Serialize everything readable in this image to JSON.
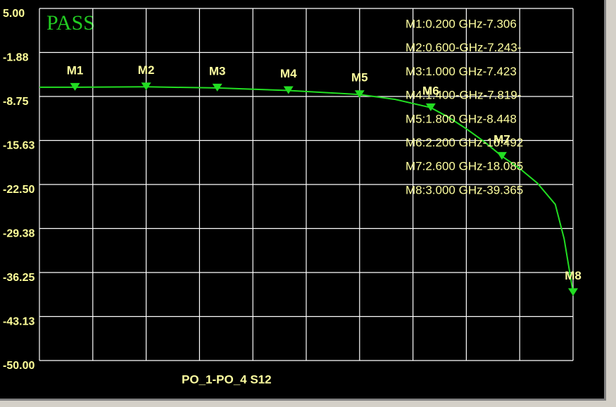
{
  "chart_data": {
    "type": "line",
    "badge": "PASS",
    "xlabel": "PO_1-PO_4  S12",
    "xlim": [
      0,
      3
    ],
    "xticks": [
      0,
      0.3,
      0.6,
      0.9,
      1.2,
      1.5,
      1.8,
      2.1,
      2.4,
      2.7,
      3
    ],
    "ylim": [
      -50,
      5
    ],
    "yticks": [
      {
        "value": 5,
        "label": "5.00"
      },
      {
        "value": -1.875,
        "label": "-1.88"
      },
      {
        "value": -8.75,
        "label": "-8.75"
      },
      {
        "value": -15.625,
        "label": "-15.63"
      },
      {
        "value": -22.5,
        "label": "-22.50"
      },
      {
        "value": -29.375,
        "label": "-29.38"
      },
      {
        "value": -36.25,
        "label": "-36.25"
      },
      {
        "value": -43.125,
        "label": "-43.13"
      },
      {
        "value": -50,
        "label": "-50.00"
      }
    ],
    "grid": true,
    "x": [
      0,
      0.2,
      0.6,
      1.0,
      1.4,
      1.8,
      2.0,
      2.2,
      2.3,
      2.4,
      2.5,
      2.6,
      2.7,
      2.8,
      2.9,
      2.95,
      3.0
    ],
    "series": [
      {
        "color": "#22dd22",
        "values": [
          -7.3,
          -7.306,
          -7.243,
          -7.423,
          -7.819,
          -8.448,
          -9.2,
          -10.492,
          -12.0,
          -13.8,
          -15.8,
          -18.085,
          -20.0,
          -22.3,
          -25.6,
          -31.0,
          -39.365
        ]
      }
    ],
    "markers": {
      "names": [
        "M1",
        "M2",
        "M3",
        "M4",
        "M5",
        "M6",
        "M7",
        "M8"
      ],
      "x": [
        0.2,
        0.6,
        1.0,
        1.4,
        1.8,
        2.2,
        2.6,
        3.0
      ],
      "values": [
        -7.306,
        -7.243,
        -7.423,
        -7.819,
        -8.448,
        -10.492,
        -18.085,
        -39.365
      ]
    },
    "marker_readouts": [
      "M1:0.200 GHz-7.306",
      "M2:0.600-GHz-7.243-",
      "M3:1.000 GHz-7.423",
      "M4:1.400-GHz-7.819-",
      "M5:1.800 GHz-8.448",
      "M6:2.200 GHz-10.492",
      "M7:2.600 GHz-18.085",
      "M8:3.000 GHz-39.365"
    ]
  }
}
